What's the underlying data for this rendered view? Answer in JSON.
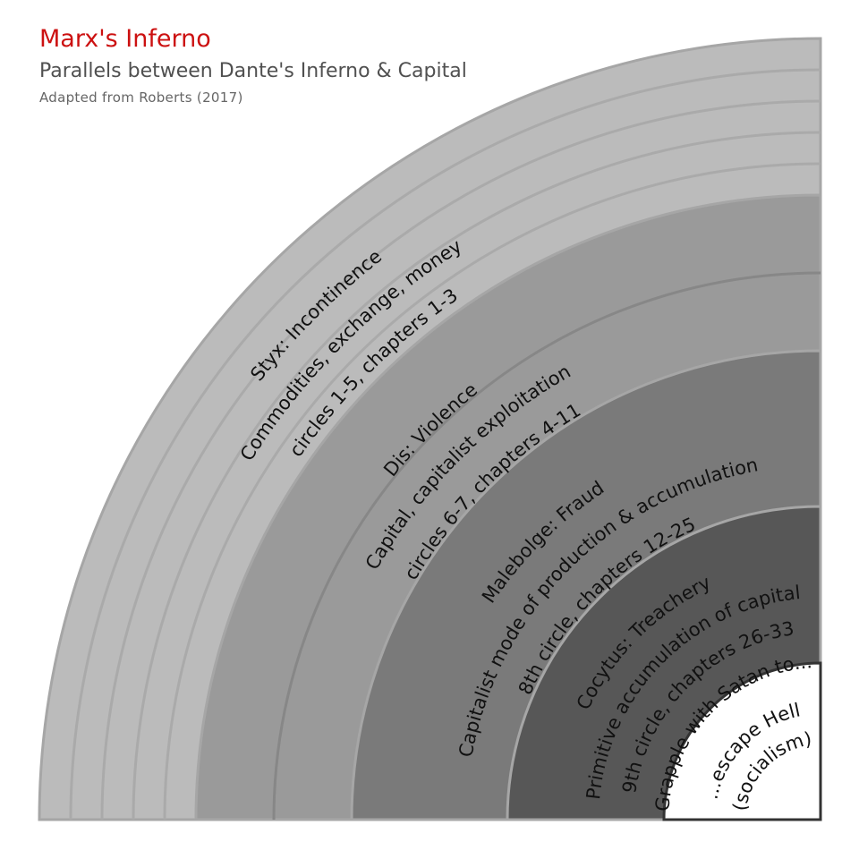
{
  "title": "Marx's Inferno",
  "subtitle": "Parallels between Dante's Inferno & Capital",
  "source": "Adapted from Roberts (2017)",
  "colors": {
    "title": "#cc1111",
    "outer_band": "#bbbbbb",
    "dis_band": "#9a9a9a",
    "malebolge_band": "#7a7a7a",
    "cocytus_band": "#575757"
  },
  "rings": [
    {
      "id": "styx",
      "lines": [
        "Styx: Incontinence",
        "Commodities, exchange, money",
        "circles 1-5, chapters 1-3"
      ]
    },
    {
      "id": "dis",
      "lines": [
        "Dis: Violence",
        "Capital, capitalist exploitation",
        "circles 6-7, chapters 4-11"
      ]
    },
    {
      "id": "malebolge",
      "lines": [
        "Malebolge: Fraud",
        "Capitalist mode of production & accumulation",
        "8th circle, chapters 12-25"
      ]
    },
    {
      "id": "cocytus",
      "lines": [
        "Cocytus: Treachery",
        "Primitive accumulation of capital",
        "9th circle, chapters 26-33",
        "Grapple with Satan to..."
      ]
    },
    {
      "id": "escape",
      "lines": [
        "...escape Hell",
        "(socialism)"
      ]
    }
  ]
}
